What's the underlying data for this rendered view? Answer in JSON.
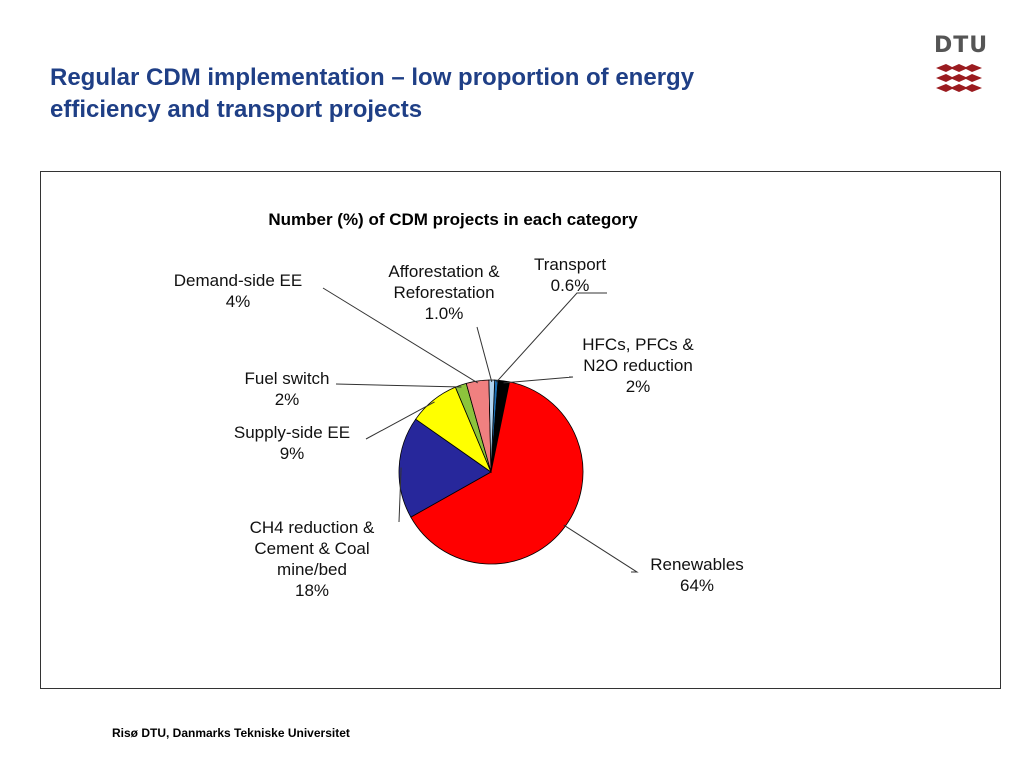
{
  "slide": {
    "title_line1": "Regular CDM implementation – low proportion of energy",
    "title_line2": "efficiency and transport projects",
    "footer": "Risø DTU, Danmarks Tekniske Universitet",
    "logo_text": "DTU",
    "logo_color": "#9b1c20"
  },
  "chart_data": {
    "type": "pie",
    "title": "Number (%) of CDM projects in each category",
    "slices": [
      {
        "label": [
          "Transport",
          "0.6%"
        ],
        "value": 0.6,
        "color": "#1a6fb6"
      },
      {
        "label": [
          "HFCs, PFCs &",
          "N2O reduction",
          "2%"
        ],
        "value": 2,
        "color": "#000000"
      },
      {
        "label": [
          "Renewables",
          "64%"
        ],
        "value": 64,
        "color": "#ff0000"
      },
      {
        "label": [
          "CH4 reduction &",
          "Cement & Coal",
          "mine/bed",
          "18%"
        ],
        "value": 18,
        "color": "#27279b"
      },
      {
        "label": [
          "Supply-side EE",
          "9%"
        ],
        "value": 9,
        "color": "#ffff00"
      },
      {
        "label": [
          "Fuel switch",
          "2%"
        ],
        "value": 2,
        "color": "#8cc43c"
      },
      {
        "label": [
          "Demand-side EE",
          "4%"
        ],
        "value": 4,
        "color": "#f08080"
      },
      {
        "label": [
          "Afforestation &",
          "Reforestation",
          "1.0%"
        ],
        "value": 1.0,
        "color": "#b0d4f0"
      }
    ],
    "legend": "none",
    "data_labels": "outside with leader lines"
  }
}
